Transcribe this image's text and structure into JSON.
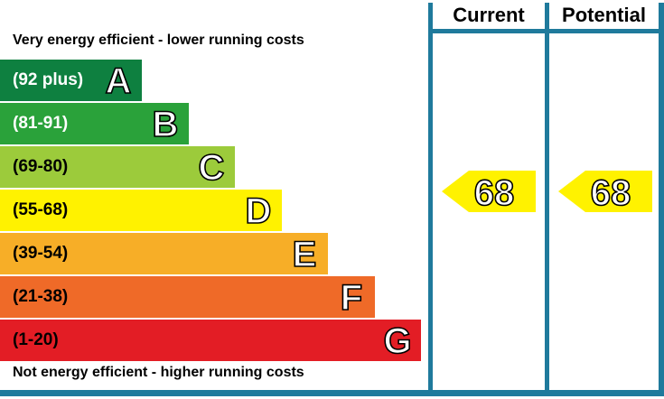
{
  "header": {
    "current_label": "Current",
    "potential_label": "Potential"
  },
  "captions": {
    "top": "Very energy efficient - lower running costs",
    "bottom": "Not energy efficient - higher running costs"
  },
  "chart_data": {
    "type": "bar",
    "title": "",
    "bands": [
      {
        "letter": "A",
        "range": "(92 plus)",
        "color": "#0e8040",
        "text_color": "#ffffff"
      },
      {
        "letter": "B",
        "range": "(81-91)",
        "color": "#2aa23a",
        "text_color": "#ffffff"
      },
      {
        "letter": "C",
        "range": "(69-80)",
        "color": "#9ccb3b",
        "text_color": "#000000"
      },
      {
        "letter": "D",
        "range": "(55-68)",
        "color": "#fff200",
        "text_color": "#000000"
      },
      {
        "letter": "E",
        "range": "(39-54)",
        "color": "#f7ae27",
        "text_color": "#000000"
      },
      {
        "letter": "F",
        "range": "(21-38)",
        "color": "#ef6a28",
        "text_color": "#000000"
      },
      {
        "letter": "G",
        "range": "(1-20)",
        "color": "#e31d25",
        "text_color": "#000000"
      }
    ],
    "series": [
      {
        "name": "Current",
        "value": 68,
        "band": "D"
      },
      {
        "name": "Potential",
        "value": 68,
        "band": "D"
      }
    ],
    "marker_color": "#fff200",
    "frame_color": "#1f7a9c"
  }
}
